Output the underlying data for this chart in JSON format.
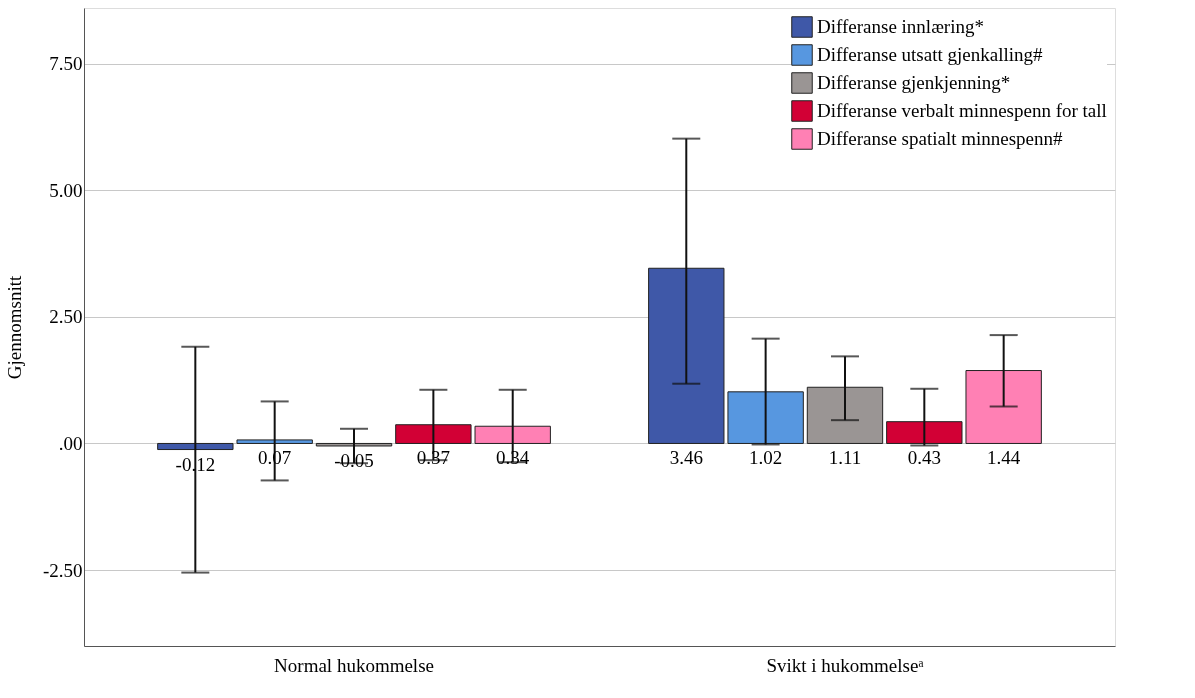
{
  "chart_data": {
    "type": "bar",
    "ylabel": "Gjennomsnitt",
    "categories": [
      "Normal hukommelse",
      "Svikt i hukommelseᵃ"
    ],
    "series": [
      {
        "name": "Differanse innlæring*",
        "color": "#3f58a8",
        "values": [
          -0.12,
          3.46
        ],
        "errors": [
          [
            -2.55,
            1.91
          ],
          [
            1.18,
            6.02
          ]
        ]
      },
      {
        "name": "Differanse utsatt gjenkalling#",
        "color": "#5797e0",
        "values": [
          0.07,
          1.02
        ],
        "errors": [
          [
            -0.73,
            0.83
          ],
          [
            -0.02,
            2.07
          ]
        ]
      },
      {
        "name": "Differanse gjenkjenning*",
        "color": "#9a9594",
        "values": [
          -0.05,
          1.11
        ],
        "errors": [
          [
            -0.39,
            0.29
          ],
          [
            0.46,
            1.72
          ]
        ]
      },
      {
        "name": "Differanse verbalt minnespenn for tall",
        "color": "#d20035",
        "values": [
          0.37,
          0.43
        ],
        "errors": [
          [
            -0.33,
            1.06
          ],
          [
            -0.04,
            1.08
          ]
        ]
      },
      {
        "name": "Differanse spatialt minnespenn#",
        "color": "#ff80b4",
        "values": [
          0.34,
          1.44
        ],
        "errors": [
          [
            -0.37,
            1.06
          ],
          [
            0.73,
            2.14
          ]
        ]
      }
    ],
    "ylim": [
      -4.0,
      8.6
    ],
    "yticks": [
      {
        "value": -2.5,
        "label": "-2.50"
      },
      {
        "value": 0,
        "label": ".00"
      },
      {
        "value": 2.5,
        "label": "2.50"
      },
      {
        "value": 5,
        "label": "5.00"
      },
      {
        "value": 7.5,
        "label": "7.50"
      }
    ],
    "grid": "y",
    "legend": "top right",
    "data_labels": true
  }
}
